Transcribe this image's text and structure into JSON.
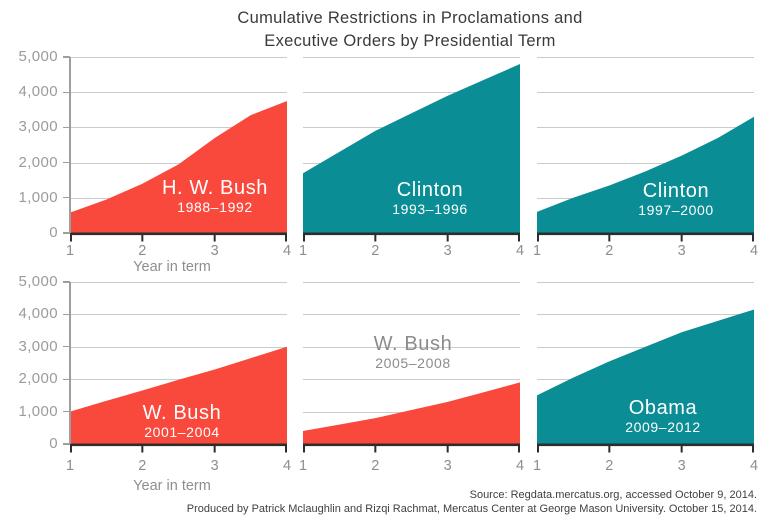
{
  "title": {
    "line1": "Cumulative Restrictions in Proclamations and",
    "line2": "Executive Orders by Presidential Term"
  },
  "axes": {
    "x_label": "Year in term",
    "x_ticks": [
      "1",
      "2",
      "3",
      "4"
    ],
    "y_ticks": [
      "5,000",
      "4,000",
      "3,000",
      "2,000",
      "1,000",
      "0"
    ]
  },
  "footer": {
    "line1": "Source: Regdata.mercatus.org, accessed October 9, 2014.",
    "line2": "Produced by Patrick Mclaughlin and Rizqi Rachmat, Mercatus Center at George Mason University. October 15, 2014."
  },
  "colors": {
    "red": "#F9493C",
    "teal": "#0A8D95",
    "grid": "#CBCBCB",
    "y_axis_line": "#9E9E9E",
    "x_axis_line": "#2D2D2D",
    "tick_label": "#9B9B9B",
    "axis_label": "#8E8E8E",
    "title_text": "#3A3A3A",
    "footer_text": "#404040",
    "white_label": "#FFFFFF",
    "gray_label": "#8C8C8C"
  },
  "chart_data": [
    {
      "type": "area",
      "name": "H. W. Bush",
      "years": "1988–1992",
      "color": "#F9493C",
      "label_color": "#FFFFFF",
      "x": [
        1,
        1.5,
        2,
        2.5,
        3,
        3.5,
        4
      ],
      "values": [
        580,
        950,
        1400,
        1950,
        2700,
        3350,
        3750
      ],
      "xlabel": "Year in term",
      "ylim": [
        0,
        5000
      ]
    },
    {
      "type": "area",
      "name": "Clinton",
      "years": "1993–1996",
      "color": "#0A8D95",
      "label_color": "#FFFFFF",
      "x": [
        1,
        1.5,
        2,
        2.5,
        3,
        3.5,
        4
      ],
      "values": [
        1700,
        2300,
        2900,
        3400,
        3900,
        4350,
        4800
      ],
      "xlabel": "Year in term",
      "ylim": [
        0,
        5000
      ]
    },
    {
      "type": "area",
      "name": "Clinton",
      "years": "1997–2000",
      "color": "#0A8D95",
      "label_color": "#FFFFFF",
      "x": [
        1,
        1.5,
        2,
        2.5,
        3,
        3.5,
        4
      ],
      "values": [
        600,
        1000,
        1350,
        1750,
        2200,
        2700,
        3300
      ],
      "xlabel": "Year in term",
      "ylim": [
        0,
        5000
      ]
    },
    {
      "type": "area",
      "name": "W. Bush",
      "years": "2001–2004",
      "color": "#F9493C",
      "label_color": "#FFFFFF",
      "x": [
        1,
        1.5,
        2,
        2.5,
        3,
        3.5,
        4
      ],
      "values": [
        1000,
        1330,
        1650,
        1980,
        2300,
        2650,
        3000
      ],
      "xlabel": "Year in term",
      "ylim": [
        0,
        5000
      ]
    },
    {
      "type": "area",
      "name": "W. Bush",
      "years": "2005–2008",
      "color": "#F9493C",
      "label_color": "#8C8C8C",
      "x": [
        1,
        1.5,
        2,
        2.5,
        3,
        3.5,
        4
      ],
      "values": [
        400,
        600,
        800,
        1050,
        1300,
        1600,
        1900
      ],
      "xlabel": "Year in term",
      "ylim": [
        0,
        5000
      ]
    },
    {
      "type": "area",
      "name": "Obama",
      "years": "2009–2012",
      "color": "#0A8D95",
      "label_color": "#FFFFFF",
      "x": [
        1,
        1.5,
        2,
        2.5,
        3,
        3.5,
        4
      ],
      "values": [
        1500,
        2050,
        2550,
        3000,
        3450,
        3800,
        4150
      ],
      "xlabel": "Year in term",
      "ylim": [
        0,
        5000
      ]
    }
  ]
}
